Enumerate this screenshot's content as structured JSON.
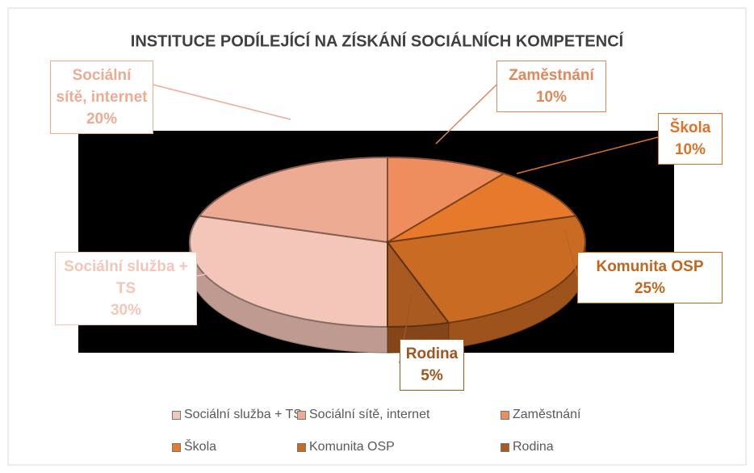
{
  "chart_data": {
    "type": "pie",
    "title": "INSTITUCE PODÍLEJÍCÍ NA ZÍSKÁNÍ SOCIÁLNÍCH KOMPETENCÍ",
    "categories": [
      "Sociální služba + TS",
      "Sociální sítě, internet",
      "Zaměstnání",
      "Škola",
      "Komunita OSP",
      "Rodina"
    ],
    "values": [
      30,
      20,
      10,
      10,
      25,
      5
    ],
    "value_labels": [
      "30%",
      "20%",
      "10%",
      "10%",
      "25%",
      "5%"
    ],
    "colors": [
      "#f3c6b9",
      "#eeab93",
      "#ee8e5e",
      "#e6792c",
      "#c96b22",
      "#a95a20"
    ],
    "legend": "bottom"
  }
}
